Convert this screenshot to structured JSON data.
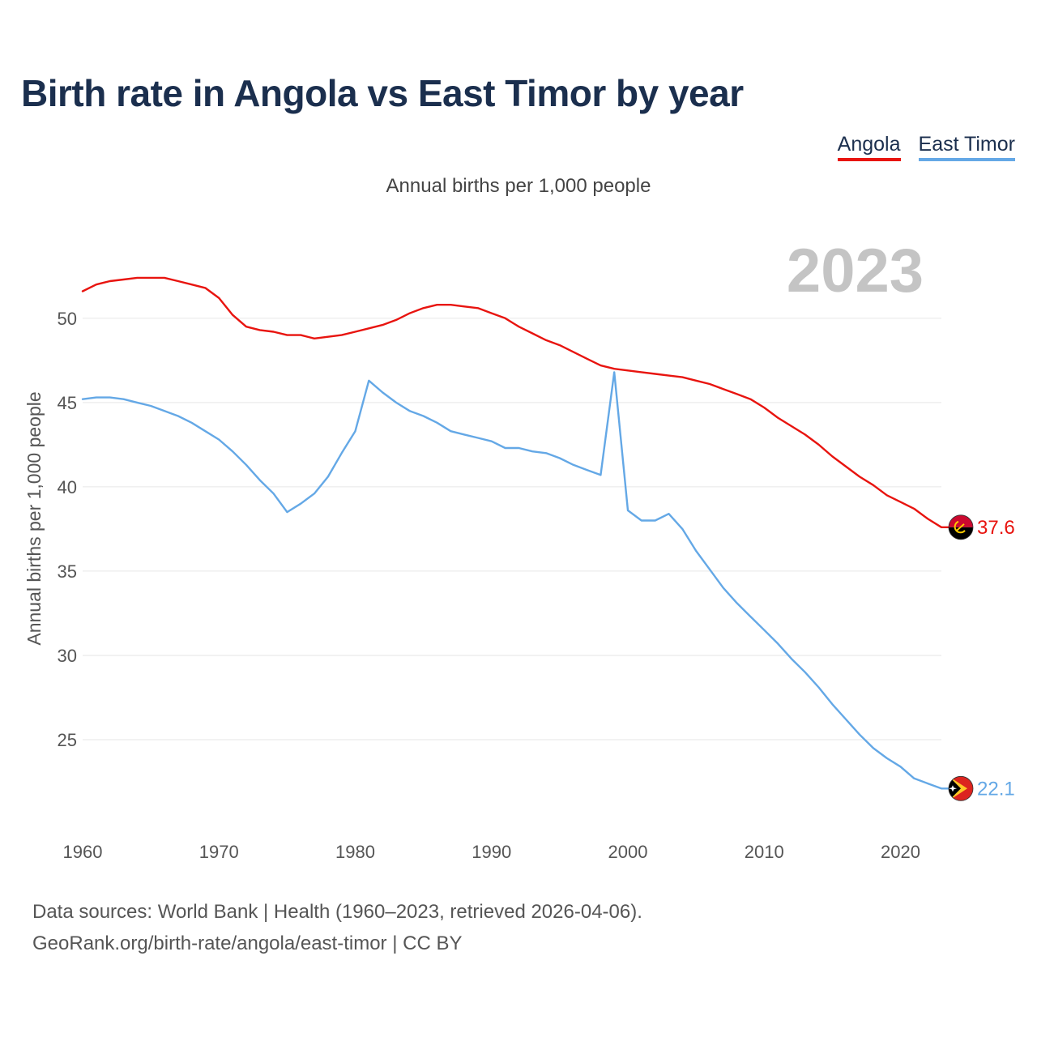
{
  "title": "Birth rate in Angola vs East Timor by year",
  "subtitle": "Annual births per 1,000 people",
  "source_line1": "Data sources: World Bank | Health (1960–2023, retrieved 2026-04-06).",
  "source_line2": "GeoRank.org/birth-rate/angola/east-timor | CC BY",
  "colors": {
    "angola": "#e8140f",
    "east_timor": "#64a8e6",
    "grid": "#e6e6e6"
  },
  "chart_data": {
    "type": "line",
    "title": "Birth rate in Angola vs East Timor by year",
    "subtitle": "Annual births per 1,000 people",
    "xlabel": "",
    "ylabel": "Annual births per 1,000 people",
    "year_label": "2023",
    "xlim": [
      1960,
      2023
    ],
    "ylim": [
      20,
      53.5
    ],
    "xticks": [
      1960,
      1970,
      1980,
      1990,
      2000,
      2010,
      2020
    ],
    "yticks": [
      25,
      30,
      35,
      40,
      45,
      50
    ],
    "grid": true,
    "legend_position": "top-right",
    "x": [
      1960,
      1961,
      1962,
      1963,
      1964,
      1965,
      1966,
      1967,
      1968,
      1969,
      1970,
      1971,
      1972,
      1973,
      1974,
      1975,
      1976,
      1977,
      1978,
      1979,
      1980,
      1981,
      1982,
      1983,
      1984,
      1985,
      1986,
      1987,
      1988,
      1989,
      1990,
      1991,
      1992,
      1993,
      1994,
      1995,
      1996,
      1997,
      1998,
      1999,
      2000,
      2001,
      2002,
      2003,
      2004,
      2005,
      2006,
      2007,
      2008,
      2009,
      2010,
      2011,
      2012,
      2013,
      2014,
      2015,
      2016,
      2017,
      2018,
      2019,
      2020,
      2021,
      2022,
      2023
    ],
    "series": [
      {
        "name": "Angola",
        "color": "#e8140f",
        "end_label": "37.6",
        "flag": "angola-flag-icon",
        "values": [
          51.6,
          52.0,
          52.2,
          52.3,
          52.4,
          52.4,
          52.4,
          52.2,
          52.0,
          51.8,
          51.2,
          50.2,
          49.5,
          49.3,
          49.2,
          49.0,
          49.0,
          48.8,
          48.9,
          49.0,
          49.2,
          49.4,
          49.6,
          49.9,
          50.3,
          50.6,
          50.8,
          50.8,
          50.7,
          50.6,
          50.3,
          50.0,
          49.5,
          49.1,
          48.7,
          48.4,
          48.0,
          47.6,
          47.2,
          47.0,
          46.9,
          46.8,
          46.7,
          46.6,
          46.5,
          46.3,
          46.1,
          45.8,
          45.5,
          45.2,
          44.7,
          44.1,
          43.6,
          43.1,
          42.5,
          41.8,
          41.2,
          40.6,
          40.1,
          39.5,
          39.1,
          38.7,
          38.1,
          37.6
        ]
      },
      {
        "name": "East Timor",
        "color": "#64a8e6",
        "end_label": "22.1",
        "flag": "east-timor-flag-icon",
        "values": [
          45.2,
          45.3,
          45.3,
          45.2,
          45.0,
          44.8,
          44.5,
          44.2,
          43.8,
          43.3,
          42.8,
          42.1,
          41.3,
          40.4,
          39.6,
          38.5,
          39.0,
          39.6,
          40.6,
          42.0,
          43.3,
          46.3,
          45.6,
          45.0,
          44.5,
          44.2,
          43.8,
          43.3,
          43.1,
          42.9,
          42.7,
          42.3,
          42.3,
          42.1,
          42.0,
          41.7,
          41.3,
          41.0,
          40.7,
          46.8,
          38.6,
          38.0,
          38.0,
          38.4,
          37.5,
          36.2,
          35.1,
          34.0,
          33.1,
          32.3,
          31.5,
          30.7,
          29.8,
          29.0,
          28.1,
          27.1,
          26.2,
          25.3,
          24.5,
          23.9,
          23.4,
          22.7,
          22.4,
          22.1
        ]
      }
    ]
  }
}
